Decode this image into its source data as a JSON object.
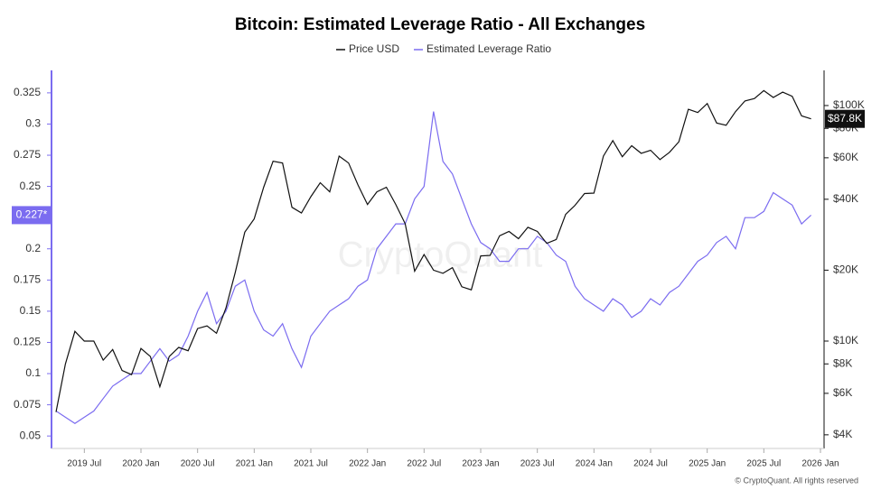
{
  "chart_data": {
    "type": "line",
    "title": "Bitcoin: Estimated Leverage Ratio - All Exchanges",
    "watermark": "CryptoQuant",
    "credit": "© CryptoQuant. All rights reserved",
    "x": [
      "2019-04",
      "2019-05",
      "2019-06",
      "2019-07",
      "2019-08",
      "2019-09",
      "2019-10",
      "2019-11",
      "2019-12",
      "2020-01",
      "2020-02",
      "2020-03",
      "2020-04",
      "2020-05",
      "2020-06",
      "2020-07",
      "2020-08",
      "2020-09",
      "2020-10",
      "2020-11",
      "2020-12",
      "2021-01",
      "2021-02",
      "2021-03",
      "2021-04",
      "2021-05",
      "2021-06",
      "2021-07",
      "2021-08",
      "2021-09",
      "2021-10",
      "2021-11",
      "2021-12",
      "2022-01",
      "2022-02",
      "2022-03",
      "2022-04",
      "2022-05",
      "2022-06",
      "2022-07",
      "2022-08",
      "2022-09",
      "2022-10",
      "2022-11",
      "2022-12",
      "2023-01",
      "2023-02",
      "2023-03",
      "2023-04",
      "2023-05",
      "2023-06",
      "2023-07",
      "2023-08",
      "2023-09",
      "2023-10",
      "2023-11",
      "2023-12",
      "2024-01",
      "2024-02",
      "2024-03",
      "2024-04",
      "2024-05",
      "2024-06",
      "2024-07",
      "2024-08",
      "2024-09",
      "2024-10",
      "2024-11",
      "2024-12",
      "2025-01",
      "2025-02",
      "2025-03",
      "2025-04",
      "2025-05",
      "2025-06",
      "2025-07",
      "2025-08",
      "2025-09",
      "2025-10",
      "2025-11",
      "2025-12"
    ],
    "xlim": [
      "2019-04",
      "2026-01"
    ],
    "xticks": [
      {
        "value": "2019-07",
        "label": "2019 Jul"
      },
      {
        "value": "2020-01",
        "label": "2020 Jan"
      },
      {
        "value": "2020-07",
        "label": "2020 Jul"
      },
      {
        "value": "2021-01",
        "label": "2021 Jan"
      },
      {
        "value": "2021-07",
        "label": "2021 Jul"
      },
      {
        "value": "2022-01",
        "label": "2022 Jan"
      },
      {
        "value": "2022-07",
        "label": "2022 Jul"
      },
      {
        "value": "2023-01",
        "label": "2023 Jan"
      },
      {
        "value": "2023-07",
        "label": "2023 Jul"
      },
      {
        "value": "2024-01",
        "label": "2024 Jan"
      },
      {
        "value": "2024-07",
        "label": "2024 Jul"
      },
      {
        "value": "2025-01",
        "label": "2025 Jan"
      },
      {
        "value": "2025-07",
        "label": "2025 Jul"
      },
      {
        "value": "2026-01",
        "label": "2026 Jan"
      }
    ],
    "ylim": [
      0.04,
      0.343
    ],
    "yticks": [
      0.05,
      0.075,
      0.1,
      0.125,
      0.15,
      0.175,
      0.2,
      0.25,
      0.275,
      0.3,
      0.325
    ],
    "y2lim": [
      3500,
      141000
    ],
    "y2scale": "log",
    "y2ticks": [
      {
        "value": 4000,
        "label": "$4K"
      },
      {
        "value": 6000,
        "label": "$6K"
      },
      {
        "value": 8000,
        "label": "$8K"
      },
      {
        "value": 10000,
        "label": "$10K"
      },
      {
        "value": 20000,
        "label": "$20K"
      },
      {
        "value": 40000,
        "label": "$40K"
      },
      {
        "value": 60000,
        "label": "$60K"
      },
      {
        "value": 80000,
        "label": "$80K"
      },
      {
        "value": 100000,
        "label": "$100K"
      }
    ],
    "series": [
      {
        "name": "Price USD",
        "color": "#111111",
        "axis": "y2",
        "values": [
          5000,
          8000,
          11000,
          10000,
          10000,
          8300,
          9200,
          7500,
          7200,
          9300,
          8600,
          6400,
          8600,
          9400,
          9100,
          11300,
          11600,
          10800,
          13800,
          19600,
          29000,
          33000,
          45000,
          58000,
          57000,
          37000,
          35000,
          41000,
          47000,
          43000,
          61000,
          57000,
          46000,
          38000,
          43000,
          45000,
          38000,
          31500,
          19800,
          23300,
          20000,
          19400,
          20500,
          17000,
          16500,
          23000,
          23100,
          28000,
          29200,
          27200,
          30400,
          29200,
          26000,
          27000,
          34500,
          37700,
          42300,
          42500,
          61000,
          71000,
          60600,
          67500,
          62700,
          64600,
          59000,
          63300,
          70200,
          96400,
          93400,
          102000,
          84300,
          82500,
          94200,
          104600,
          107100,
          115700,
          108200,
          114000,
          109500,
          90400,
          87800
        ],
        "current": {
          "value": 87800,
          "label": "$87.8K"
        }
      },
      {
        "name": "Estimated Leverage Ratio",
        "color": "#7b6cf0",
        "values": [
          0.07,
          0.065,
          0.06,
          0.065,
          0.07,
          0.08,
          0.09,
          0.095,
          0.1,
          0.1,
          0.11,
          0.12,
          0.11,
          0.115,
          0.13,
          0.15,
          0.165,
          0.14,
          0.15,
          0.17,
          0.175,
          0.15,
          0.135,
          0.13,
          0.14,
          0.12,
          0.105,
          0.13,
          0.14,
          0.15,
          0.155,
          0.16,
          0.17,
          0.175,
          0.2,
          0.21,
          0.22,
          0.22,
          0.24,
          0.25,
          0.31,
          0.27,
          0.26,
          0.24,
          0.22,
          0.205,
          0.2,
          0.19,
          0.19,
          0.2,
          0.2,
          0.21,
          0.205,
          0.195,
          0.19,
          0.17,
          0.16,
          0.155,
          0.15,
          0.16,
          0.155,
          0.145,
          0.15,
          0.16,
          0.155,
          0.165,
          0.17,
          0.18,
          0.19,
          0.195,
          0.205,
          0.21,
          0.2,
          0.225,
          0.225,
          0.23,
          0.245,
          0.24,
          0.235,
          0.22,
          0.227
        ],
        "current": {
          "value": 0.227,
          "label": "0.227*"
        }
      }
    ]
  }
}
